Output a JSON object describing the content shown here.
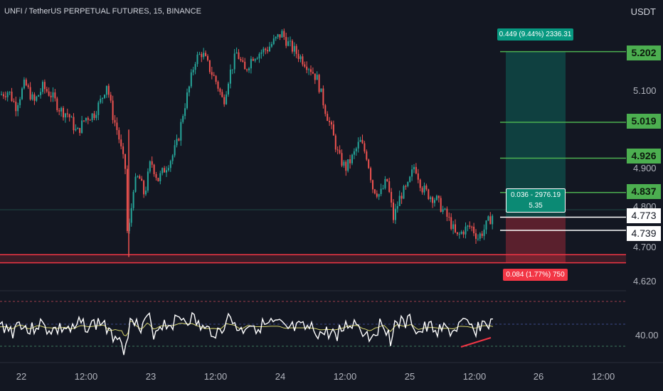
{
  "header": {
    "symbol_line": "UNFI / TetherUS PERPETUAL FUTURES, 15, BINANCE",
    "currency": "USDT"
  },
  "price_axis": {
    "ticks": [
      "5.100",
      "4.900",
      "4.800",
      "4.700",
      "4.620"
    ]
  },
  "price_levels": [
    {
      "label": "5.202",
      "value": 5.202,
      "style": "green"
    },
    {
      "label": "5.019",
      "value": 5.019,
      "style": "green"
    },
    {
      "label": "4.926",
      "value": 4.926,
      "style": "green"
    },
    {
      "label": "4.837",
      "value": 4.837,
      "style": "green"
    },
    {
      "label": "4.773",
      "value": 4.773,
      "style": "white"
    },
    {
      "label": "4.739",
      "value": 4.739,
      "style": "white"
    }
  ],
  "position_tool": {
    "target_text": "0.449 (9.44%) 2336.31",
    "mid_line1": "0.036 - 2976.19",
    "mid_line2": "5.35",
    "stop_text": "0.084 (1.77%) 750"
  },
  "oscillator": {
    "tick": "40.00"
  },
  "time_axis": {
    "labels": [
      "22",
      "12:00",
      "23",
      "12:00",
      "24",
      "12:00",
      "25",
      "12:00",
      "26",
      "12:00"
    ]
  },
  "colors": {
    "bg": "#131722",
    "up": "#26a69a",
    "down": "#ef5350",
    "level": "#4caf50",
    "osc": "#ffffff",
    "osc_ma": "#d4d36a",
    "support": "#f23645"
  },
  "chart_data": {
    "type": "candlestick",
    "title": "UNFI / TetherUS PERPETUAL FUTURES, 15, BINANCE",
    "ylim": [
      4.6,
      5.28
    ],
    "x_labels": [
      "22",
      "12:00",
      "23",
      "12:00",
      "24",
      "12:00",
      "25",
      "12:00",
      "26",
      "12:00"
    ],
    "price_path": [
      [
        0,
        5.09
      ],
      [
        12,
        5.1
      ],
      [
        22,
        5.06
      ],
      [
        35,
        5.12
      ],
      [
        48,
        5.07
      ],
      [
        60,
        5.11
      ],
      [
        72,
        5.09
      ],
      [
        85,
        5.05
      ],
      [
        96,
        5.04
      ],
      [
        108,
        4.99
      ],
      [
        120,
        5.03
      ],
      [
        132,
        5.04
      ],
      [
        143,
        5.08
      ],
      [
        150,
        5.12
      ],
      [
        158,
        5.04
      ],
      [
        166,
        4.99
      ],
      [
        172,
        4.93
      ],
      [
        176,
        4.9
      ],
      [
        179,
        4.73
      ],
      [
        183,
        4.76
      ],
      [
        187,
        4.85
      ],
      [
        195,
        4.88
      ],
      [
        203,
        4.83
      ],
      [
        212,
        4.92
      ],
      [
        222,
        4.87
      ],
      [
        232,
        4.9
      ],
      [
        242,
        4.93
      ],
      [
        250,
        4.97
      ],
      [
        258,
        5.05
      ],
      [
        266,
        5.11
      ],
      [
        274,
        5.18
      ],
      [
        284,
        5.2
      ],
      [
        294,
        5.16
      ],
      [
        305,
        5.12
      ],
      [
        314,
        5.07
      ],
      [
        322,
        5.14
      ],
      [
        333,
        5.2
      ],
      [
        344,
        5.15
      ],
      [
        355,
        5.19
      ],
      [
        366,
        5.2
      ],
      [
        376,
        5.21
      ],
      [
        386,
        5.23
      ],
      [
        396,
        5.25
      ],
      [
        406,
        5.22
      ],
      [
        416,
        5.2
      ],
      [
        426,
        5.18
      ],
      [
        436,
        5.16
      ],
      [
        446,
        5.13
      ],
      [
        456,
        5.06
      ],
      [
        466,
        5
      ],
      [
        476,
        4.93
      ],
      [
        486,
        4.9
      ],
      [
        496,
        4.93
      ],
      [
        506,
        4.97
      ],
      [
        516,
        4.93
      ],
      [
        524,
        4.85
      ],
      [
        534,
        4.83
      ],
      [
        544,
        4.87
      ],
      [
        553,
        4.77
      ],
      [
        563,
        4.83
      ],
      [
        573,
        4.85
      ],
      [
        583,
        4.91
      ],
      [
        593,
        4.85
      ],
      [
        603,
        4.83
      ],
      [
        613,
        4.82
      ],
      [
        623,
        4.79
      ],
      [
        633,
        4.76
      ],
      [
        642,
        4.72
      ],
      [
        652,
        4.74
      ],
      [
        662,
        4.75
      ],
      [
        672,
        4.72
      ],
      [
        680,
        4.74
      ],
      [
        686,
        4.76
      ],
      [
        693,
        4.78
      ]
    ],
    "levels": [
      5.202,
      5.019,
      4.926,
      4.837,
      4.773,
      4.739
    ],
    "support_zone": [
      4.655,
      4.676
    ],
    "oscillator": {
      "reference": 40.0
    },
    "legend": "none",
    "grid": false
  }
}
